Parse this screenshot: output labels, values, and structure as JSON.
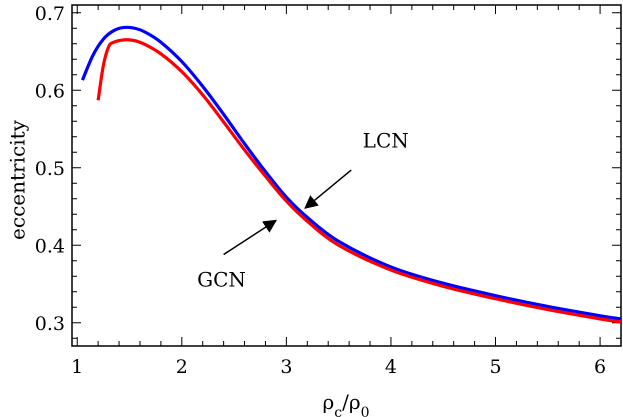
{
  "chart_data": {
    "type": "line",
    "title": "",
    "xlabel": "ρc/ρ0",
    "ylabel": "eccentricity",
    "xlim": [
      0.95,
      6.2
    ],
    "ylim": [
      0.27,
      0.71
    ],
    "x_ticks": [
      1,
      2,
      3,
      4,
      5,
      6
    ],
    "y_ticks": [
      0.3,
      0.4,
      0.5,
      0.6,
      0.7
    ],
    "x_tick_labels": [
      "1",
      "2",
      "3",
      "4",
      "5",
      "6"
    ],
    "y_tick_labels": [
      "0.3",
      "0.4",
      "0.5",
      "0.6",
      "0.7"
    ],
    "grid": false,
    "legend": "none",
    "series": [
      {
        "color": "#0000ff",
        "x": [
          1.05,
          1.15,
          1.25,
          1.35,
          1.45,
          1.55,
          1.65,
          1.8,
          2.0,
          2.2,
          2.4,
          2.6,
          2.8,
          3.0,
          3.2,
          3.5,
          4.0,
          4.5,
          5.0,
          5.5,
          6.0,
          6.2
        ],
        "y": [
          0.613,
          0.645,
          0.666,
          0.677,
          0.681,
          0.68,
          0.675,
          0.662,
          0.637,
          0.605,
          0.569,
          0.531,
          0.495,
          0.462,
          0.436,
          0.405,
          0.372,
          0.351,
          0.335,
          0.321,
          0.309,
          0.305
        ]
      },
      {
        "color": "#ff0000",
        "x": [
          1.2,
          1.25,
          1.3,
          1.35,
          1.45,
          1.55,
          1.65,
          1.8,
          2.0,
          2.2,
          2.4,
          2.6,
          2.8,
          3.0,
          3.2,
          3.5,
          4.0,
          4.5,
          5.0,
          5.5,
          6.0,
          6.2
        ],
        "y": [
          0.587,
          0.632,
          0.656,
          0.662,
          0.665,
          0.664,
          0.659,
          0.647,
          0.624,
          0.594,
          0.559,
          0.523,
          0.489,
          0.457,
          0.431,
          0.4,
          0.368,
          0.347,
          0.331,
          0.317,
          0.305,
          0.301
        ]
      }
    ],
    "annotations": [
      {
        "text": "LCN",
        "label_x": 3.95,
        "label_y": 0.526,
        "arrow_from": [
          3.62,
          0.497
        ],
        "arrow_to": [
          3.18,
          0.448
        ]
      },
      {
        "text": "GCN",
        "label_x": 2.38,
        "label_y": 0.347,
        "arrow_from": [
          2.4,
          0.388
        ],
        "arrow_to": [
          2.9,
          0.432
        ]
      }
    ]
  }
}
